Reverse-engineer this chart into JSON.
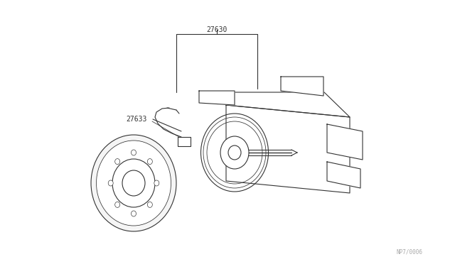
{
  "bg_color": "#ffffff",
  "line_color": "#333333",
  "label_27630": "27630",
  "label_27633": "27633",
  "watermark": "NP7/0006",
  "fig_width": 6.4,
  "fig_height": 3.72,
  "dpi": 100
}
